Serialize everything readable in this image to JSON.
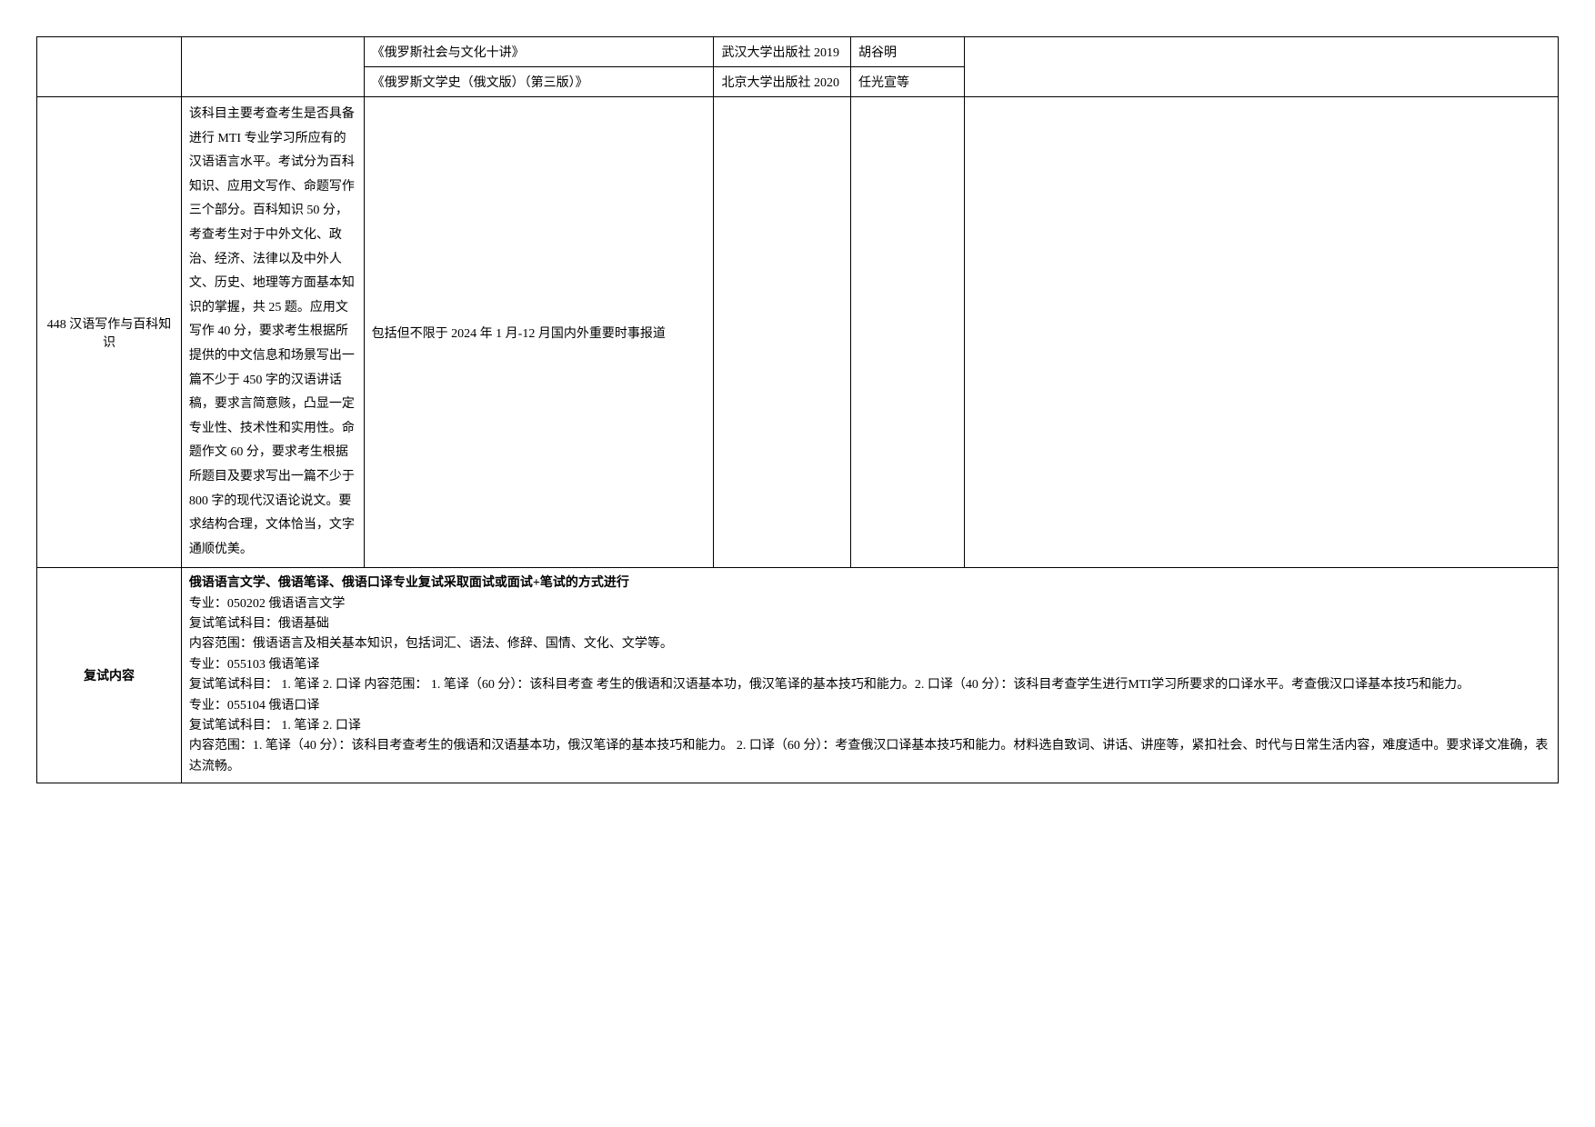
{
  "rows": {
    "book1": {
      "title": "《俄罗斯社会与文化十讲》",
      "publisher": "武汉大学出版社 2019",
      "author": "胡谷明"
    },
    "book2": {
      "title": "《俄罗斯文学史（俄文版）（第三版）》",
      "publisher": "北京大学出版社 2020",
      "author": "任光宣等"
    },
    "subject448": {
      "left": "448 汉语写作与百科知识",
      "desc": "该科目主要考查考生是否具备进行 MTI 专业学习所应有的汉语语言水平。考试分为百科知识、应用文写作、命题写作三个部分。百科知识 50 分，考查考生对于中外文化、政治、经济、法律以及中外人文、历史、地理等方面基本知识的掌握，共 25 题。应用文写作 40 分，要求考生根据所提供的中文信息和场景写出一篇不少于 450 字的汉语讲话稿，要求言简意赅，凸显一定专业性、技术性和实用性。命题作文 60 分，要求考生根据所题目及要求写出一篇不少于 800 字的现代汉语论说文。要求结构合理，文体恰当，文字通顺优美。",
      "scope": "包括但不限于 2024 年 1 月-12 月国内外重要时事报道"
    },
    "fushi": {
      "left": "复试内容",
      "header": "俄语语言文学、俄语笔译、俄语口译专业复试采取面试或面试+笔试的方式进行",
      "p1": "专业：050202 俄语语言文学",
      "p2": "复试笔试科目：俄语基础",
      "p3": "内容范围：俄语语言及相关基本知识，包括词汇、语法、修辞、国情、文化、文学等。",
      "p4": "专业：055103  俄语笔译",
      "p5": "复试笔试科目： 1. 笔译 2. 口译 内容范围： 1. 笔译（60 分）：该科目考查 考生的俄语和汉语基本功，俄汉笔译的基本技巧和能力。2. 口译（40 分）：该科目考查学生进行MTI学习所要求的口译水平。考查俄汉口译基本技巧和能力。",
      "p6": "专业：055104  俄语口译",
      "p7": " 复试笔试科目： 1. 笔译 2. 口译",
      "p8": "内容范围：1. 笔译（40 分）：该科目考查考生的俄语和汉语基本功，俄汉笔译的基本技巧和能力。 2. 口译（60 分）：考查俄汉口译基本技巧和能力。材料选自致词、讲话、讲座等，紧扣社会、时代与日常生活内容，难度适中。要求译文准确，表达流畅。"
    }
  }
}
